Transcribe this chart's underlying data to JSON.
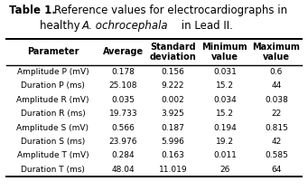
{
  "col_headers": [
    "Parameter",
    "Average",
    "Standard\ndeviation",
    "Minimum\nvalue",
    "Maximum\nvalue"
  ],
  "rows": [
    [
      "Amplitude P (mV)",
      "0.178",
      "0.156",
      "0.031",
      "0.6"
    ],
    [
      "Duration P (ms)",
      "25.108",
      "9.222",
      "15.2",
      "44"
    ],
    [
      "Amplitude R (mV)",
      "0.035",
      "0.002",
      "0.034",
      "0.038"
    ],
    [
      "Duration R (ms)",
      "19.733",
      "3.925",
      "15.2",
      "22"
    ],
    [
      "Amplitude S (mV)",
      "0.566",
      "0.187",
      "0.194",
      "0.815"
    ],
    [
      "Duration S (ms)",
      "23.976",
      "5.996",
      "19.2",
      "42"
    ],
    [
      "Amplitude T (mV)",
      "0.284",
      "0.163",
      "0.011",
      "0.585"
    ],
    [
      "Duration T (ms)",
      "48.04",
      "11.019",
      "26",
      "64"
    ]
  ],
  "background_color": "#ffffff",
  "font_size": 6.5,
  "title_fontsize": 8.5,
  "header_fontsize": 7.0
}
